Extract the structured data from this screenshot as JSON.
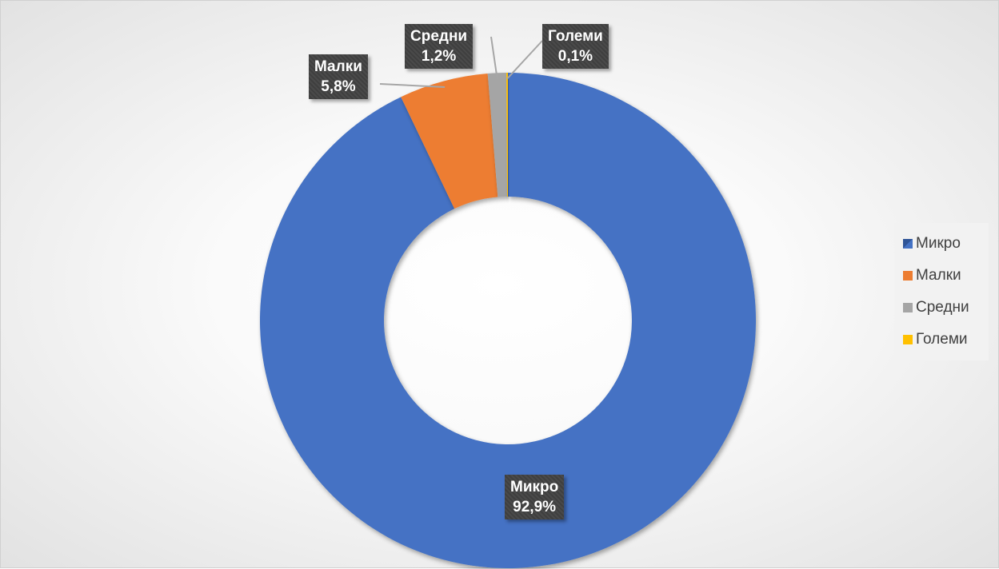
{
  "chart_data": {
    "type": "pie",
    "categories": [
      "Микро",
      "Малки",
      "Средни",
      "Големи"
    ],
    "values": [
      92.9,
      5.8,
      1.2,
      0.1
    ],
    "value_labels": [
      "92,9%",
      "5,8%",
      "1,2%",
      "0,1%"
    ],
    "colors": [
      "#4472c4",
      "#ed7d31",
      "#a5a5a5",
      "#ffc000"
    ],
    "legend_position": "right",
    "donut": true
  }
}
